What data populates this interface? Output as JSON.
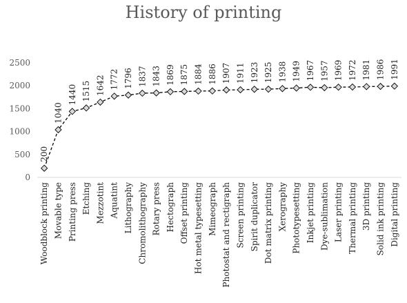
{
  "chart_data": {
    "type": "line",
    "title": "History of printing",
    "xlabel": "",
    "ylabel": "",
    "ylim": [
      0,
      2500
    ],
    "yticks": [
      0,
      500,
      1000,
      1500,
      2000,
      2500
    ],
    "grid": false,
    "legend": "none",
    "line_style": "dashed",
    "marker": "diamond",
    "colors": {
      "line": "#000000",
      "marker_fill": "#d9d9d9",
      "marker_stroke": "#000000",
      "axis": "#d9d9d9"
    },
    "categories": [
      "Woodblock printing",
      "Movable type",
      "Printing press",
      "Etching",
      "Mezzotint",
      "Aquatint",
      "Lithography",
      "Chromolithography",
      "Rotary press",
      "Hectograph",
      "Offset printing",
      "Hot metal typesetting",
      "Mimeograph",
      "Photostat and rectigraph",
      "Screen printing",
      "Spirit duplicator",
      "Dot matrix printing",
      "Xerography",
      "Phototypesetting",
      "Inkjet printing",
      "Dye-sublimation",
      "Laser printing",
      "Thermal printing",
      "3D printing",
      "Solid ink printing",
      "Digital printing"
    ],
    "values": [
      200,
      1040,
      1440,
      1515,
      1642,
      1772,
      1796,
      1837,
      1843,
      1869,
      1875,
      1884,
      1886,
      1907,
      1911,
      1923,
      1925,
      1938,
      1949,
      1967,
      1957,
      1969,
      1972,
      1981,
      1986,
      1991
    ]
  }
}
